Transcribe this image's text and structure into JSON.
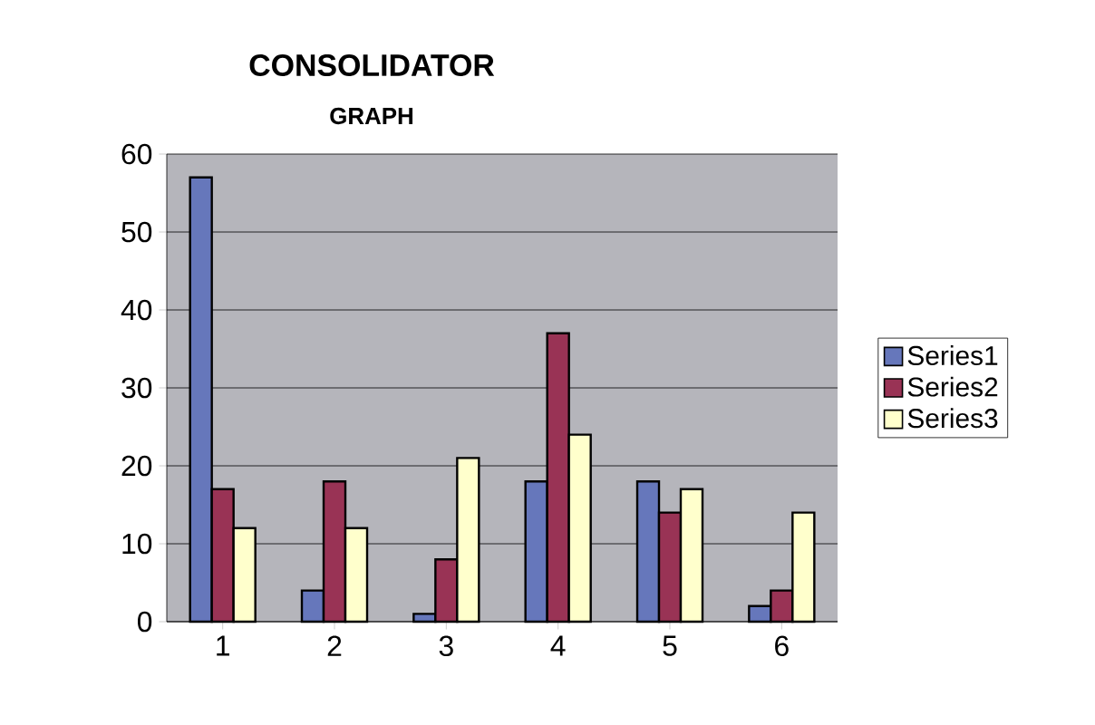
{
  "chart_data": {
    "type": "bar",
    "title": "CONSOLIDATOR",
    "subtitle": "GRAPH",
    "categories": [
      "1",
      "2",
      "3",
      "4",
      "5",
      "6"
    ],
    "series": [
      {
        "name": "Series1",
        "color": "#6677bb",
        "values": [
          57,
          4,
          1,
          18,
          18,
          2
        ]
      },
      {
        "name": "Series2",
        "color": "#993355",
        "values": [
          17,
          18,
          8,
          37,
          14,
          4
        ]
      },
      {
        "name": "Series3",
        "color": "#ffffcc",
        "values": [
          12,
          12,
          21,
          24,
          17,
          14
        ]
      }
    ],
    "ylim": [
      0,
      60
    ],
    "yticks": [
      0,
      10,
      20,
      30,
      40,
      50,
      60
    ],
    "grid": "y",
    "legend": "right"
  }
}
